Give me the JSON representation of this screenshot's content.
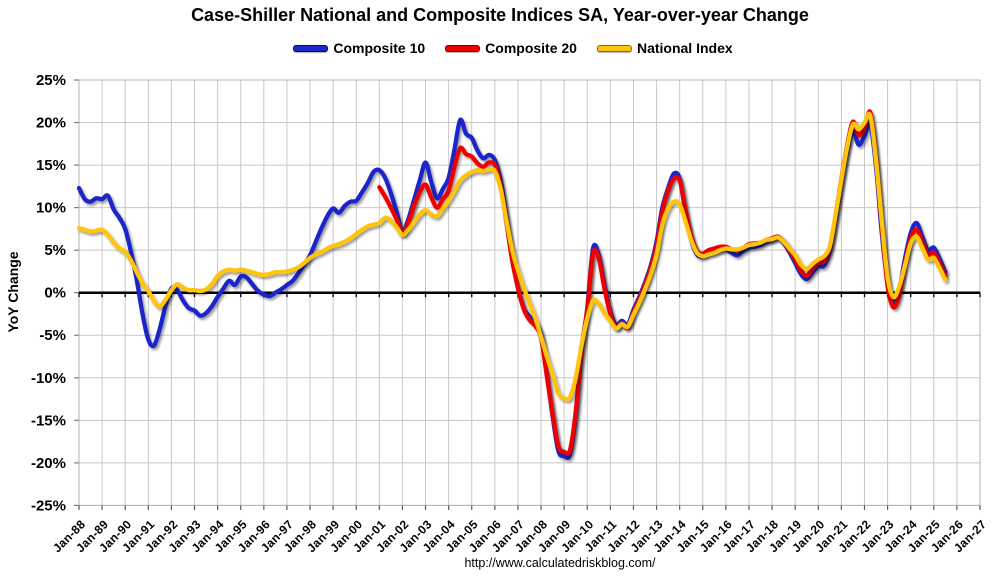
{
  "title": "Case-Shiller National and Composite Indices SA, Year-over-year Change",
  "footer": "http://www.calculatedriskblog.com/",
  "chart_data": {
    "type": "line",
    "title": "Case-Shiller National and Composite Indices SA, Year-over-year Change",
    "ylabel": "YoY Change",
    "ylim": [
      -25,
      25
    ],
    "ytick_step": 5,
    "ytick_suffix": "%",
    "x_start_year": 1988,
    "x_end_year": 2027,
    "grid": true,
    "legend_position": "top",
    "colors": {
      "grid": "#c8c8c8",
      "border": "#b4b4b4",
      "zero_axis": "#000000",
      "tick": "#7f7f7f"
    },
    "xtick_labels": [
      "Jan-88",
      "Jan-89",
      "Jan-90",
      "Jan-91",
      "Jan-92",
      "Jan-93",
      "Jan-94",
      "Jan-95",
      "Jan-96",
      "Jan-97",
      "Jan-98",
      "Jan-99",
      "Jan-00",
      "Jan-01",
      "Jan-02",
      "Jan-03",
      "Jan-04",
      "Jan-05",
      "Jan-06",
      "Jan-07",
      "Jan-08",
      "Jan-09",
      "Jan-10",
      "Jan-11",
      "Jan-12",
      "Jan-13",
      "Jan-14",
      "Jan-15",
      "Jan-16",
      "Jan-17",
      "Jan-18",
      "Jan-19",
      "Jan-20",
      "Jan-21",
      "Jan-22",
      "Jan-23",
      "Jan-24",
      "Jan-25",
      "Jan-26",
      "Jan-27"
    ],
    "series": [
      {
        "name": "Composite 10",
        "color": "#1e28c8",
        "x0": 1988.0,
        "dx": 0.25,
        "values": [
          12.3,
          11.0,
          10.7,
          11.1,
          11.0,
          11.4,
          9.8,
          8.8,
          7.5,
          4.8,
          1.5,
          -2.5,
          -5.5,
          -6.2,
          -4.2,
          -1.5,
          0.5,
          0.3,
          -0.9,
          -1.8,
          -2.1,
          -2.7,
          -2.4,
          -1.6,
          -0.5,
          0.5,
          1.4,
          0.9,
          1.9,
          1.8,
          1.0,
          0.2,
          -0.2,
          -0.4,
          0.0,
          0.4,
          0.9,
          1.4,
          2.3,
          3.3,
          4.4,
          6.0,
          7.6,
          9.0,
          9.9,
          9.4,
          10.2,
          10.7,
          10.8,
          11.8,
          12.9,
          14.2,
          14.4,
          13.5,
          11.7,
          9.5,
          7.2,
          8.6,
          10.9,
          13.2,
          15.3,
          13.0,
          11.1,
          12.2,
          13.5,
          16.8,
          20.3,
          18.7,
          18.2,
          16.7,
          15.8,
          16.2,
          15.6,
          13.2,
          8.8,
          4.2,
          0.6,
          -1.8,
          -2.8,
          -3.5,
          -5.0,
          -9.5,
          -14.5,
          -18.6,
          -19.2,
          -19.0,
          -14.5,
          -7.0,
          -1.8,
          5.2,
          4.4,
          0.8,
          -2.2,
          -3.8,
          -3.3,
          -3.8,
          -2.0,
          -0.5,
          1.2,
          3.2,
          6.0,
          10.0,
          12.3,
          14.0,
          13.4,
          9.5,
          6.2,
          4.5,
          4.3,
          4.6,
          4.8,
          5.0,
          5.1,
          4.7,
          4.4,
          4.9,
          5.3,
          5.4,
          5.6,
          6.0,
          6.2,
          6.5,
          5.9,
          4.8,
          3.5,
          2.2,
          1.6,
          2.4,
          3.1,
          3.2,
          5.0,
          8.8,
          13.0,
          16.8,
          19.0,
          17.4,
          18.4,
          19.8,
          14.8,
          7.0,
          1.2,
          -1.2,
          0.3,
          4.0,
          7.0,
          8.2,
          6.6,
          5.0,
          5.3,
          4.0,
          2.4
        ]
      },
      {
        "name": "Composite 20",
        "color": "#ee0000",
        "x0": 2001.0,
        "dx": 0.25,
        "values": [
          12.4,
          11.3,
          10.0,
          8.6,
          7.0,
          8.2,
          10.2,
          11.8,
          12.7,
          11.2,
          10.0,
          11.0,
          12.0,
          14.8,
          17.0,
          16.3,
          16.0,
          15.2,
          14.8,
          15.3,
          15.0,
          12.6,
          8.3,
          3.8,
          0.6,
          -1.9,
          -3.2,
          -3.9,
          -5.3,
          -9.8,
          -14.2,
          -18.0,
          -18.7,
          -18.5,
          -14.0,
          -6.6,
          -2.0,
          4.6,
          4.0,
          0.4,
          -2.5,
          -4.1,
          -3.6,
          -4.1,
          -2.3,
          -0.8,
          0.9,
          2.9,
          5.5,
          9.5,
          12.0,
          13.4,
          13.2,
          9.8,
          6.7,
          4.9,
          4.6,
          5.0,
          5.2,
          5.4,
          5.4,
          5.1,
          5.0,
          5.3,
          5.7,
          5.8,
          5.9,
          6.2,
          6.4,
          6.6,
          6.0,
          5.0,
          3.9,
          2.6,
          2.0,
          2.8,
          3.5,
          3.7,
          5.3,
          9.1,
          13.4,
          17.3,
          20.1,
          18.5,
          19.4,
          21.2,
          15.8,
          7.8,
          0.8,
          -1.7,
          -0.3,
          3.4,
          6.4,
          7.4,
          6.0,
          4.5,
          4.7,
          3.5,
          2.0
        ]
      },
      {
        "name": "National Index",
        "color": "#ffc40d",
        "x0": 1988.0,
        "dx": 0.25,
        "values": [
          7.6,
          7.4,
          7.2,
          7.3,
          7.4,
          6.8,
          5.9,
          5.2,
          4.8,
          3.8,
          2.4,
          1.1,
          0.2,
          -1.0,
          -1.6,
          -0.8,
          0.3,
          1.0,
          0.6,
          0.3,
          0.3,
          0.2,
          0.4,
          1.0,
          2.0,
          2.5,
          2.7,
          2.6,
          2.7,
          2.6,
          2.4,
          2.2,
          2.1,
          2.2,
          2.4,
          2.4,
          2.5,
          2.7,
          3.0,
          3.5,
          4.1,
          4.5,
          4.8,
          5.2,
          5.5,
          5.7,
          6.0,
          6.4,
          6.9,
          7.4,
          7.8,
          8.0,
          8.2,
          8.8,
          8.5,
          7.7,
          6.8,
          7.4,
          8.3,
          9.2,
          9.7,
          9.2,
          9.0,
          9.9,
          10.8,
          12.0,
          13.2,
          13.8,
          14.2,
          14.4,
          14.3,
          14.5,
          14.3,
          12.2,
          8.5,
          5.0,
          2.6,
          0.6,
          -1.2,
          -3.0,
          -5.2,
          -7.5,
          -9.6,
          -11.8,
          -12.4,
          -12.3,
          -10.0,
          -6.2,
          -3.0,
          -0.9,
          -1.3,
          -2.4,
          -3.3,
          -4.2,
          -3.7,
          -4.0,
          -2.6,
          -1.2,
          0.4,
          2.2,
          4.5,
          8.0,
          9.9,
          10.7,
          10.4,
          8.4,
          6.2,
          4.7,
          4.3,
          4.5,
          4.7,
          5.0,
          5.2,
          5.1,
          5.1,
          5.3,
          5.6,
          5.7,
          5.9,
          6.2,
          6.3,
          6.5,
          6.0,
          5.2,
          4.4,
          3.3,
          2.8,
          3.4,
          3.9,
          4.3,
          5.5,
          9.2,
          13.3,
          17.1,
          19.8,
          19.2,
          20.0,
          20.8,
          15.5,
          8.3,
          1.8,
          -0.5,
          0.7,
          3.2,
          5.8,
          6.6,
          5.3,
          3.9,
          4.1,
          2.9,
          1.5
        ]
      }
    ]
  }
}
